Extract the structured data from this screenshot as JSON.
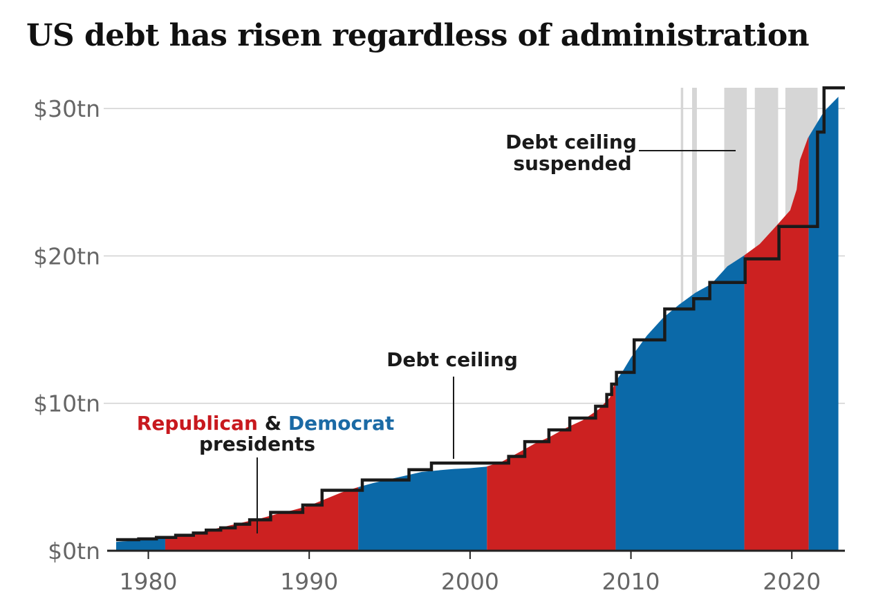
{
  "title": "US debt has risen regardless of administration",
  "colors": {
    "republican": "#cc2121",
    "democrat": "#0b69a8",
    "ceiling": "#1a1a1a",
    "suspended": "#d6d6d6",
    "grid": "#d0d0d0"
  },
  "chart_data": {
    "type": "area",
    "title": "US debt has risen regardless of administration",
    "xlabel": "",
    "ylabel": "",
    "xlim": [
      1978,
      2023.3
    ],
    "ylim": [
      0,
      31.5
    ],
    "x_ticks": [
      1980,
      1990,
      2000,
      2010,
      2020
    ],
    "x_tick_labels": [
      "1980",
      "1990",
      "2000",
      "2010",
      "2020"
    ],
    "y_ticks": [
      0,
      10,
      20,
      30
    ],
    "y_tick_labels": [
      "$0tn",
      "$10tn",
      "$20tn",
      "$30tn"
    ],
    "grid": true,
    "debt": {
      "x": [
        1978,
        1979,
        1980,
        1981,
        1982,
        1983,
        1984,
        1985,
        1986,
        1987,
        1988,
        1989,
        1990,
        1991,
        1992,
        1993,
        1994,
        1995,
        1996,
        1997,
        1998,
        1999,
        2000,
        2001,
        2002,
        2003,
        2004,
        2005,
        2006,
        2007,
        2008,
        2008.7,
        2009,
        2009.5,
        2010,
        2011,
        2012,
        2013,
        2014,
        2015,
        2016,
        2017,
        2018,
        2019,
        2019.9,
        2020.3,
        2020.5,
        2021,
        2022,
        2022.9
      ],
      "y": [
        0.6,
        0.68,
        0.75,
        0.85,
        1.0,
        1.2,
        1.45,
        1.7,
        1.95,
        2.2,
        2.5,
        2.75,
        3.05,
        3.5,
        3.95,
        4.3,
        4.6,
        4.85,
        5.1,
        5.35,
        5.45,
        5.55,
        5.6,
        5.7,
        6.05,
        6.65,
        7.25,
        7.75,
        8.35,
        8.85,
        9.6,
        10.4,
        11.4,
        12.2,
        13.1,
        14.6,
        15.8,
        16.7,
        17.5,
        18.1,
        19.3,
        20.0,
        20.8,
        22.0,
        23.1,
        24.5,
        26.5,
        28.0,
        29.8,
        30.8
      ]
    },
    "presidencies": [
      {
        "party": "Democrat",
        "start": 1978,
        "end": 1981.05
      },
      {
        "party": "Republican",
        "start": 1981.05,
        "end": 1993.05
      },
      {
        "party": "Democrat",
        "start": 1993.05,
        "end": 2001.05
      },
      {
        "party": "Republican",
        "start": 2001.05,
        "end": 2009.05
      },
      {
        "party": "Democrat",
        "start": 2009.05,
        "end": 2017.05
      },
      {
        "party": "Republican",
        "start": 2017.05,
        "end": 2021.05
      },
      {
        "party": "Democrat",
        "start": 2021.05,
        "end": 2022.9
      }
    ],
    "debt_ceiling": {
      "x": [
        1978,
        1979.4,
        1980.5,
        1981.7,
        1982.8,
        1983.6,
        1984.5,
        1985.4,
        1986.3,
        1987.6,
        1989.6,
        1990.8,
        1993.3,
        1996.2,
        1997.6,
        2002.4,
        2003.4,
        2004.9,
        2006.2,
        2007.8,
        2008.5,
        2008.8,
        2009.1,
        2010.2,
        2012.1,
        2013.9,
        2014.9,
        2017.1,
        2019.2,
        2021.6,
        2022.0,
        2023.3
      ],
      "y": [
        0.75,
        0.8,
        0.9,
        1.05,
        1.2,
        1.4,
        1.55,
        1.8,
        2.1,
        2.6,
        3.1,
        4.1,
        4.8,
        5.5,
        5.95,
        6.4,
        7.4,
        8.2,
        9.0,
        9.8,
        10.6,
        11.3,
        12.1,
        14.3,
        16.4,
        17.1,
        18.2,
        19.8,
        22.0,
        28.4,
        31.4,
        31.4
      ]
    },
    "suspended": [
      [
        2013.1,
        2013.25
      ],
      [
        2013.8,
        2014.1
      ],
      [
        2015.8,
        2017.2
      ],
      [
        2017.7,
        2019.15
      ],
      [
        2019.6,
        2021.6
      ]
    ],
    "annotations": {
      "legend_rep": "Republican",
      "legend_amp": " & ",
      "legend_dem": "Democrat",
      "legend_line2": "presidents",
      "ceiling_label": "Debt ceiling",
      "suspended_line1": "Debt ceiling",
      "suspended_line2": "suspended"
    }
  }
}
